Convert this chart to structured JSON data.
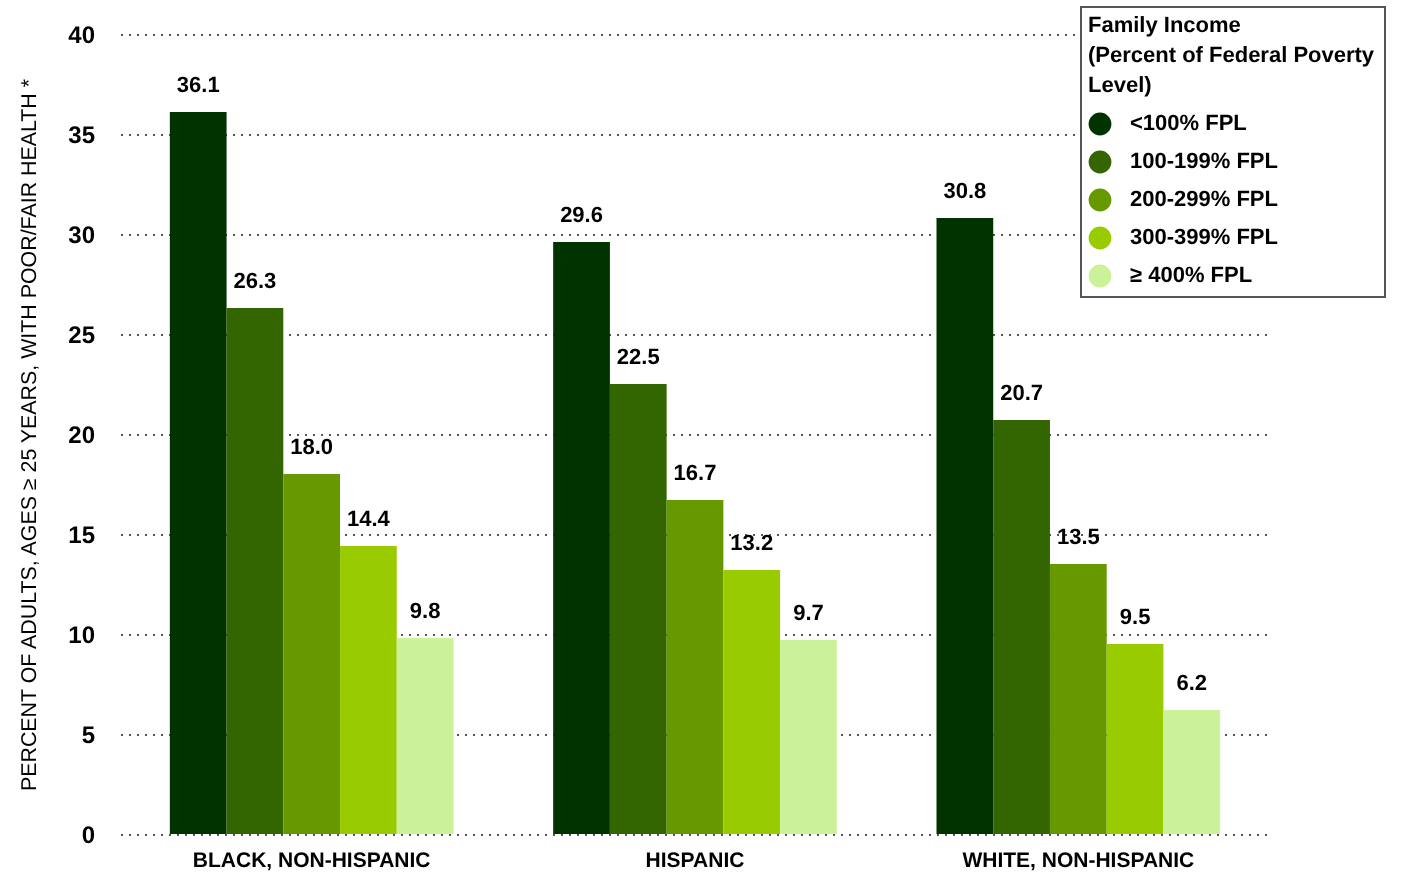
{
  "chart_data": {
    "type": "bar",
    "ylabel": "PERCENT OF ADULTS, AGES ≥ 25 YEARS, WITH POOR/FAIR HEALTH *",
    "legend_title": "Family Income\n(Percent of Federal Poverty\nLevel)",
    "categories": [
      "BLACK, NON-HISPANIC",
      "HISPANIC",
      "WHITE, NON-HISPANIC"
    ],
    "series": [
      {
        "name": "<100% FPL",
        "color": "#003300",
        "values": [
          36.1,
          29.6,
          30.8
        ],
        "value_labels": [
          "36.1",
          "29.6",
          "30.8"
        ]
      },
      {
        "name": "100-199% FPL",
        "color": "#336600",
        "values": [
          26.3,
          22.5,
          20.7
        ],
        "value_labels": [
          "26.3",
          "22.5",
          "20.7"
        ]
      },
      {
        "name": "200-299% FPL",
        "color": "#669900",
        "values": [
          18.0,
          16.7,
          13.5
        ],
        "value_labels": [
          "18.0",
          "16.7",
          "13.5"
        ]
      },
      {
        "name": "300-399% FPL",
        "color": "#99cc00",
        "values": [
          14.4,
          13.2,
          9.5
        ],
        "value_labels": [
          "14.4",
          "13.2",
          "9.5"
        ]
      },
      {
        "name": "≥ 400% FPL",
        "color": "#ccf299",
        "values": [
          9.8,
          9.7,
          6.2
        ],
        "value_labels": [
          "9.8",
          "9.7",
          "6.2"
        ]
      }
    ],
    "ylim": [
      0,
      40
    ],
    "yticks": [
      0,
      5,
      10,
      15,
      20,
      25,
      30,
      35,
      40
    ],
    "grid": "y",
    "legend": "top right",
    "marker": "circle"
  }
}
